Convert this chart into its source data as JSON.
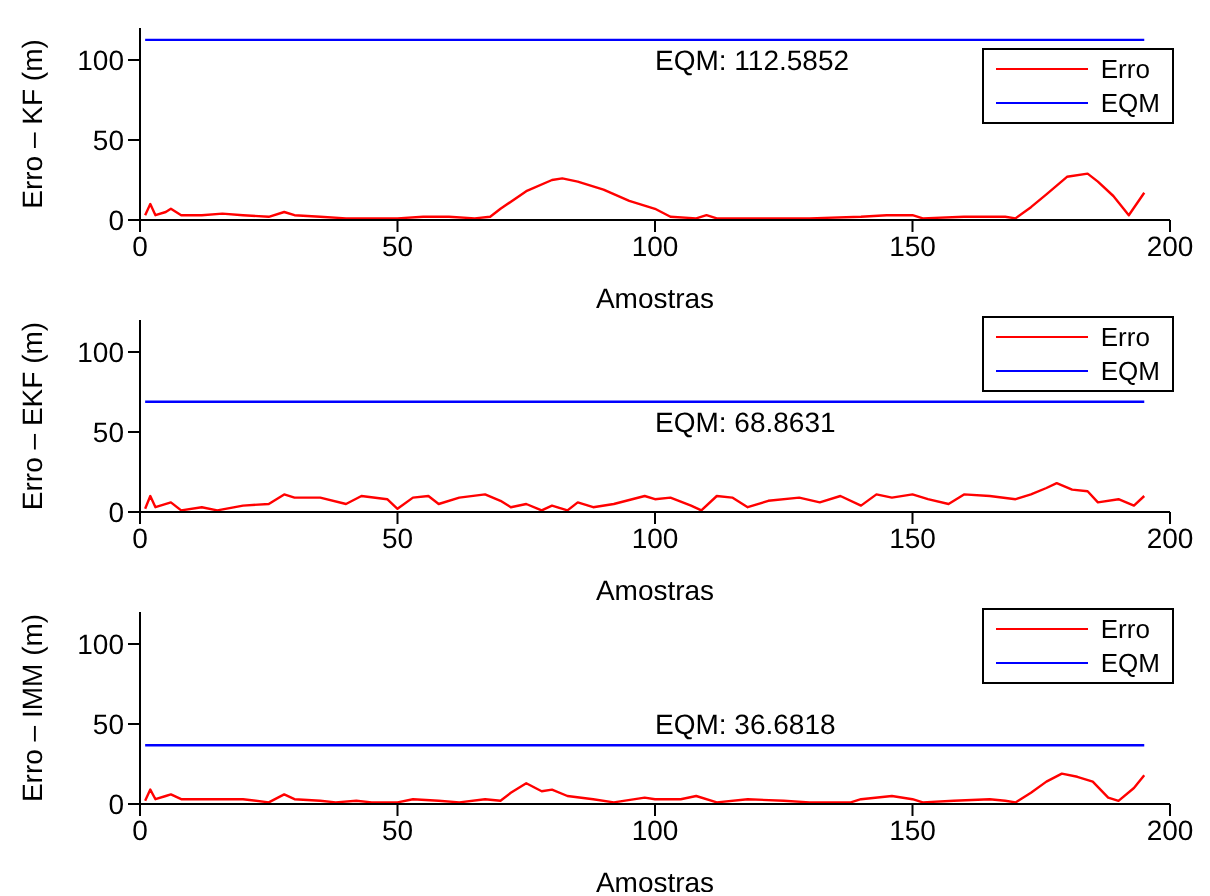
{
  "chart_data": [
    {
      "type": "line",
      "xlabel": "Amostras",
      "ylabel": "Erro – KF (m)",
      "xlim": [
        0,
        200
      ],
      "xticks": [
        0,
        50,
        100,
        150,
        200
      ],
      "ylim": [
        0,
        120
      ],
      "yticks": [
        0,
        50,
        100
      ],
      "legend": "top right",
      "series": [
        {
          "name": "Erro",
          "color": "#ff0000",
          "x": [
            1,
            2,
            3,
            5,
            6,
            8,
            12,
            16,
            20,
            25,
            28,
            30,
            35,
            40,
            45,
            50,
            55,
            60,
            65,
            68,
            70,
            75,
            80,
            82,
            85,
            90,
            95,
            100,
            103,
            108,
            110,
            112,
            120,
            130,
            140,
            145,
            150,
            152,
            160,
            168,
            170,
            173,
            176,
            180,
            184,
            186,
            189,
            192,
            195
          ],
          "values": [
            3,
            10,
            3,
            5,
            7,
            3,
            3,
            4,
            3,
            2,
            5,
            3,
            2,
            1,
            1,
            1,
            2,
            2,
            1,
            2,
            7,
            18,
            25,
            26,
            24,
            19,
            12,
            7,
            2,
            1,
            3,
            1,
            1,
            1,
            2,
            3,
            3,
            1,
            2,
            2,
            1,
            8,
            16,
            27,
            29,
            24,
            15,
            3,
            17
          ]
        },
        {
          "name": "EQM",
          "color": "#0000ff",
          "x": [
            1,
            195
          ],
          "values": [
            112.5852,
            112.5852
          ]
        }
      ],
      "annotations": [
        {
          "text": "EQM: 112.5852",
          "y": 112.5852
        }
      ]
    },
    {
      "type": "line",
      "xlabel": "Amostras",
      "ylabel": "Erro – EKF (m)",
      "xlim": [
        0,
        200
      ],
      "xticks": [
        0,
        50,
        100,
        150,
        200
      ],
      "ylim": [
        0,
        120
      ],
      "yticks": [
        0,
        50,
        100
      ],
      "legend": "top right",
      "series": [
        {
          "name": "Erro",
          "color": "#ff0000",
          "x": [
            1,
            2,
            3,
            6,
            8,
            12,
            15,
            20,
            25,
            28,
            30,
            35,
            40,
            43,
            48,
            50,
            53,
            56,
            58,
            62,
            67,
            70,
            72,
            75,
            78,
            80,
            83,
            85,
            88,
            92,
            98,
            100,
            103,
            107,
            109,
            112,
            115,
            118,
            122,
            128,
            132,
            136,
            140,
            143,
            146,
            150,
            153,
            157,
            160,
            165,
            170,
            173,
            176,
            178,
            181,
            184,
            186,
            190,
            193,
            195
          ],
          "values": [
            2,
            10,
            3,
            6,
            1,
            3,
            1,
            4,
            5,
            11,
            9,
            9,
            5,
            10,
            8,
            2,
            9,
            10,
            5,
            9,
            11,
            7,
            3,
            5,
            1,
            4,
            1,
            6,
            3,
            5,
            10,
            8,
            9,
            4,
            1,
            10,
            9,
            3,
            7,
            9,
            6,
            10,
            4,
            11,
            9,
            11,
            8,
            5,
            11,
            10,
            8,
            11,
            15,
            18,
            14,
            13,
            6,
            8,
            4,
            10
          ]
        },
        {
          "name": "EQM",
          "color": "#0000ff",
          "x": [
            1,
            195
          ],
          "values": [
            68.8631,
            68.8631
          ]
        }
      ],
      "annotations": [
        {
          "text": "EQM: 68.8631",
          "y": 68.8631
        }
      ]
    },
    {
      "type": "line",
      "xlabel": "Amostras",
      "ylabel": "Erro – IMM (m)",
      "xlim": [
        0,
        200
      ],
      "xticks": [
        0,
        50,
        100,
        150,
        200
      ],
      "ylim": [
        0,
        120
      ],
      "yticks": [
        0,
        50,
        100
      ],
      "legend": "top right",
      "series": [
        {
          "name": "Erro",
          "color": "#ff0000",
          "x": [
            1,
            2,
            3,
            5,
            6,
            8,
            15,
            20,
            25,
            28,
            30,
            35,
            38,
            42,
            45,
            50,
            53,
            58,
            62,
            67,
            70,
            72,
            75,
            78,
            80,
            83,
            88,
            92,
            98,
            100,
            105,
            108,
            112,
            118,
            125,
            130,
            138,
            140,
            146,
            150,
            152,
            158,
            165,
            168,
            170,
            173,
            176,
            179,
            182,
            185,
            188,
            190,
            193,
            195
          ],
          "values": [
            2,
            9,
            3,
            5,
            6,
            3,
            3,
            3,
            1,
            6,
            3,
            2,
            1,
            2,
            1,
            1,
            3,
            2,
            1,
            3,
            2,
            7,
            13,
            8,
            9,
            5,
            3,
            1,
            4,
            3,
            3,
            5,
            1,
            3,
            2,
            1,
            1,
            3,
            5,
            3,
            1,
            2,
            3,
            2,
            1,
            7,
            14,
            19,
            17,
            14,
            4,
            2,
            10,
            18
          ]
        },
        {
          "name": "EQM",
          "color": "#0000ff",
          "x": [
            1,
            195
          ],
          "values": [
            36.6818,
            36.6818
          ]
        }
      ],
      "annotations": [
        {
          "text": "EQM: 36.6818",
          "y": 36.6818
        }
      ]
    }
  ]
}
